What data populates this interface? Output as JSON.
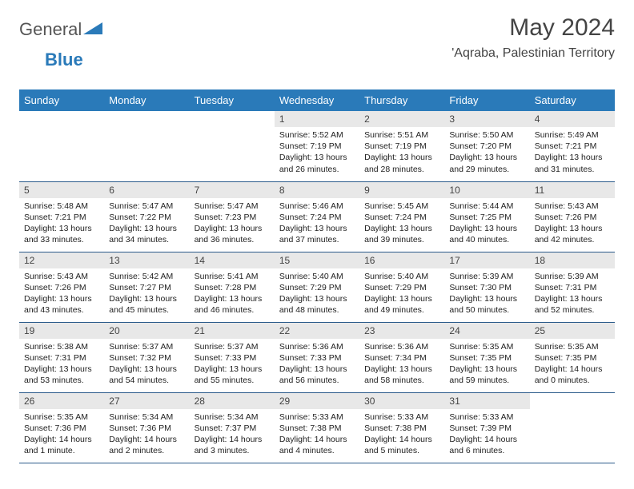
{
  "brand": {
    "part1": "General",
    "part2": "Blue"
  },
  "title": "May 2024",
  "location": "'Aqraba, Palestinian Territory",
  "colors": {
    "header_bg": "#2a7ab9",
    "header_text": "#ffffff",
    "daynum_bg": "#e8e8e8",
    "row_border": "#2a5a8a",
    "text": "#333333"
  },
  "weekdays": [
    "Sunday",
    "Monday",
    "Tuesday",
    "Wednesday",
    "Thursday",
    "Friday",
    "Saturday"
  ],
  "weeks": [
    [
      null,
      null,
      null,
      {
        "n": "1",
        "sr": "5:52 AM",
        "ss": "7:19 PM",
        "dl": "13 hours and 26 minutes."
      },
      {
        "n": "2",
        "sr": "5:51 AM",
        "ss": "7:19 PM",
        "dl": "13 hours and 28 minutes."
      },
      {
        "n": "3",
        "sr": "5:50 AM",
        "ss": "7:20 PM",
        "dl": "13 hours and 29 minutes."
      },
      {
        "n": "4",
        "sr": "5:49 AM",
        "ss": "7:21 PM",
        "dl": "13 hours and 31 minutes."
      }
    ],
    [
      {
        "n": "5",
        "sr": "5:48 AM",
        "ss": "7:21 PM",
        "dl": "13 hours and 33 minutes."
      },
      {
        "n": "6",
        "sr": "5:47 AM",
        "ss": "7:22 PM",
        "dl": "13 hours and 34 minutes."
      },
      {
        "n": "7",
        "sr": "5:47 AM",
        "ss": "7:23 PM",
        "dl": "13 hours and 36 minutes."
      },
      {
        "n": "8",
        "sr": "5:46 AM",
        "ss": "7:24 PM",
        "dl": "13 hours and 37 minutes."
      },
      {
        "n": "9",
        "sr": "5:45 AM",
        "ss": "7:24 PM",
        "dl": "13 hours and 39 minutes."
      },
      {
        "n": "10",
        "sr": "5:44 AM",
        "ss": "7:25 PM",
        "dl": "13 hours and 40 minutes."
      },
      {
        "n": "11",
        "sr": "5:43 AM",
        "ss": "7:26 PM",
        "dl": "13 hours and 42 minutes."
      }
    ],
    [
      {
        "n": "12",
        "sr": "5:43 AM",
        "ss": "7:26 PM",
        "dl": "13 hours and 43 minutes."
      },
      {
        "n": "13",
        "sr": "5:42 AM",
        "ss": "7:27 PM",
        "dl": "13 hours and 45 minutes."
      },
      {
        "n": "14",
        "sr": "5:41 AM",
        "ss": "7:28 PM",
        "dl": "13 hours and 46 minutes."
      },
      {
        "n": "15",
        "sr": "5:40 AM",
        "ss": "7:29 PM",
        "dl": "13 hours and 48 minutes."
      },
      {
        "n": "16",
        "sr": "5:40 AM",
        "ss": "7:29 PM",
        "dl": "13 hours and 49 minutes."
      },
      {
        "n": "17",
        "sr": "5:39 AM",
        "ss": "7:30 PM",
        "dl": "13 hours and 50 minutes."
      },
      {
        "n": "18",
        "sr": "5:39 AM",
        "ss": "7:31 PM",
        "dl": "13 hours and 52 minutes."
      }
    ],
    [
      {
        "n": "19",
        "sr": "5:38 AM",
        "ss": "7:31 PM",
        "dl": "13 hours and 53 minutes."
      },
      {
        "n": "20",
        "sr": "5:37 AM",
        "ss": "7:32 PM",
        "dl": "13 hours and 54 minutes."
      },
      {
        "n": "21",
        "sr": "5:37 AM",
        "ss": "7:33 PM",
        "dl": "13 hours and 55 minutes."
      },
      {
        "n": "22",
        "sr": "5:36 AM",
        "ss": "7:33 PM",
        "dl": "13 hours and 56 minutes."
      },
      {
        "n": "23",
        "sr": "5:36 AM",
        "ss": "7:34 PM",
        "dl": "13 hours and 58 minutes."
      },
      {
        "n": "24",
        "sr": "5:35 AM",
        "ss": "7:35 PM",
        "dl": "13 hours and 59 minutes."
      },
      {
        "n": "25",
        "sr": "5:35 AM",
        "ss": "7:35 PM",
        "dl": "14 hours and 0 minutes."
      }
    ],
    [
      {
        "n": "26",
        "sr": "5:35 AM",
        "ss": "7:36 PM",
        "dl": "14 hours and 1 minute."
      },
      {
        "n": "27",
        "sr": "5:34 AM",
        "ss": "7:36 PM",
        "dl": "14 hours and 2 minutes."
      },
      {
        "n": "28",
        "sr": "5:34 AM",
        "ss": "7:37 PM",
        "dl": "14 hours and 3 minutes."
      },
      {
        "n": "29",
        "sr": "5:33 AM",
        "ss": "7:38 PM",
        "dl": "14 hours and 4 minutes."
      },
      {
        "n": "30",
        "sr": "5:33 AM",
        "ss": "7:38 PM",
        "dl": "14 hours and 5 minutes."
      },
      {
        "n": "31",
        "sr": "5:33 AM",
        "ss": "7:39 PM",
        "dl": "14 hours and 6 minutes."
      },
      null
    ]
  ],
  "labels": {
    "sunrise": "Sunrise:",
    "sunset": "Sunset:",
    "daylight": "Daylight:"
  }
}
